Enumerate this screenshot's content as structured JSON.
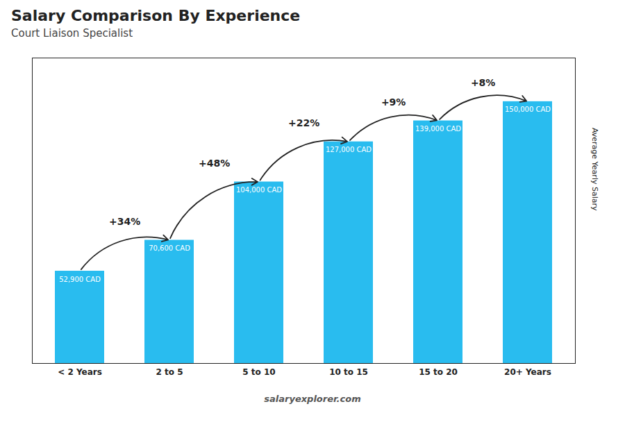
{
  "chart_data": {
    "type": "bar",
    "title": "Salary Comparison By Experience",
    "subtitle": "Court Liaison Specialist",
    "ylabel": "Average Yearly Salary",
    "categories": [
      "< 2 Years",
      "2 to 5",
      "5 to 10",
      "10 to 15",
      "15 to 20",
      "20+ Years"
    ],
    "values": [
      52900,
      70600,
      104000,
      127000,
      139000,
      150000
    ],
    "value_labels": [
      "52,900 CAD",
      "70,600 CAD",
      "104,000 CAD",
      "127,000 CAD",
      "139,000 CAD",
      "150,000 CAD"
    ],
    "data_labels": true,
    "annotations": [
      "+34%",
      "+48%",
      "+22%",
      "+9%",
      "+8%"
    ],
    "caption": "salaryexplorer.com",
    "color": "#29BCEF",
    "ylim": [
      0,
      175000
    ],
    "grid": false,
    "tick_labels": "x"
  }
}
